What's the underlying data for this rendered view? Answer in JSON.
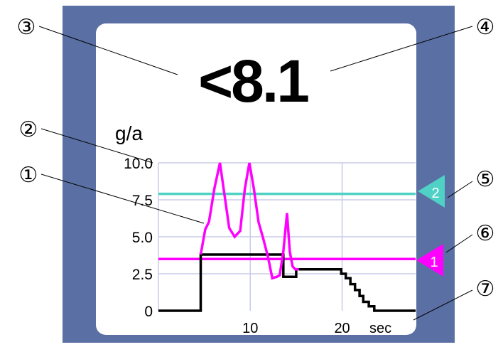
{
  "callouts": [
    "①",
    "②",
    "③",
    "④",
    "⑤",
    "⑥",
    "⑦"
  ],
  "display": {
    "reading": "<8.1",
    "unit": "g/a",
    "x_unit": "sec"
  },
  "colors": {
    "frame": "#5a6fa3",
    "screen": "#ffffff",
    "trace": "#ff00ff",
    "limit_1": "#ff00ff",
    "limit_2": "#4fd1c5",
    "history": "#000000",
    "grid": "#c8cbe8"
  },
  "markers": {
    "limit_1_label": "1",
    "limit_2_label": "2"
  },
  "chart_data": {
    "type": "line",
    "xlabel": "sec",
    "ylabel": "g/a",
    "xlim": [
      0,
      28
    ],
    "ylim": [
      0,
      10
    ],
    "x_ticks": [
      "10",
      "20"
    ],
    "x_tick_values": [
      10,
      20
    ],
    "y_ticks": [
      "0",
      "2.5",
      "5.0",
      "7.5",
      "10.0"
    ],
    "y_tick_values": [
      0,
      2.5,
      5.0,
      7.5,
      10.0
    ],
    "grid": true,
    "thresholds": [
      {
        "label": "2",
        "value": 7.9
      },
      {
        "label": "1",
        "value": 3.5
      }
    ],
    "series": [
      {
        "x": [
          4.6,
          5.1,
          5.5,
          6.1,
          6.7,
          7.2,
          7.7,
          8.3,
          8.9,
          9.4,
          9.9,
          10.4,
          10.9,
          11.4,
          11.9,
          12.4,
          12.9,
          13.2,
          13.6,
          14.0,
          14.3,
          14.6,
          14.9,
          15.3
        ],
        "y": [
          3.8,
          5.5,
          6.0,
          8.3,
          10.0,
          7.8,
          5.6,
          5.0,
          5.4,
          8.2,
          10.0,
          8.2,
          6.0,
          4.9,
          3.7,
          2.2,
          2.3,
          2.4,
          4.0,
          6.6,
          4.0,
          3.0,
          2.8,
          2.8
        ]
      },
      {
        "x": [
          0,
          4.6,
          4.6,
          13.6,
          13.6,
          15.0,
          15.0,
          19.9,
          19.9,
          20.4,
          20.4,
          20.9,
          20.9,
          21.4,
          21.4,
          21.9,
          21.9,
          22.3,
          22.3,
          22.9,
          22.9,
          23.5,
          23.5,
          28.0
        ],
        "y": [
          0,
          0,
          3.8,
          3.8,
          2.3,
          2.3,
          2.8,
          2.8,
          2.5,
          2.5,
          2.2,
          2.2,
          1.8,
          1.8,
          1.4,
          1.4,
          1.0,
          1.0,
          0.6,
          0.6,
          0.3,
          0.3,
          0,
          0
        ]
      }
    ]
  }
}
